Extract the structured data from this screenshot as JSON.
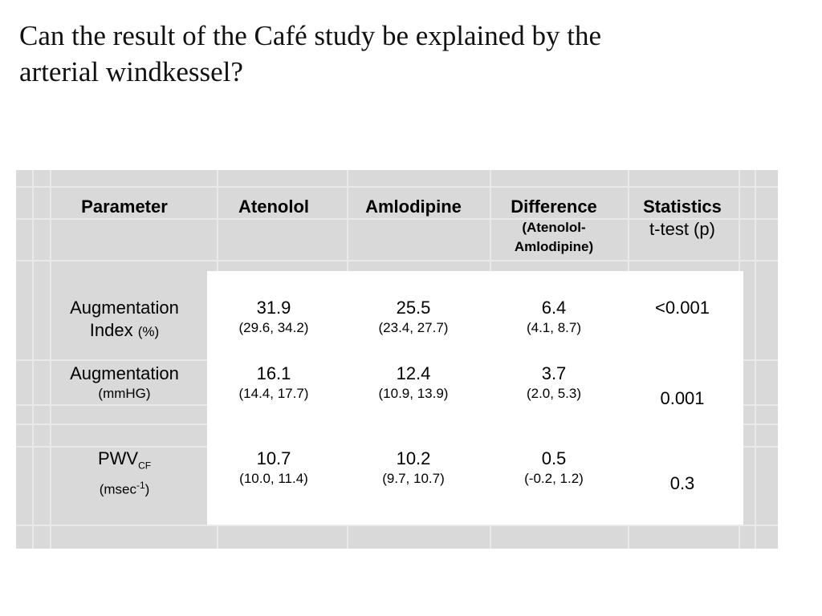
{
  "title": {
    "line1": "Can the result of the Café study be explained by the",
    "line2": "arterial windkessel?"
  },
  "table": {
    "headers": {
      "parameter": "Parameter",
      "atenolol": "Atenolol",
      "amlodipine": "Amlodipine",
      "difference": "Difference",
      "difference_sub_1": "(Atenolol-",
      "difference_sub_2": "Amlodipine)",
      "statistics": "Statistics",
      "statistics_sub": "t-test (p)"
    },
    "rows": [
      {
        "param_line1": "Augmentation",
        "param_line2": "Index",
        "param_unit": "(%)",
        "atenolol": "31.9",
        "atenolol_ci": "(29.6, 34.2)",
        "amlodipine": "25.5",
        "amlodipine_ci": "(23.4, 27.7)",
        "difference": "6.4",
        "difference_ci": "(4.1, 8.7)",
        "p": "<0.001"
      },
      {
        "param_line1": "Augmentation",
        "param_unit": "(mmHG)",
        "atenolol": "16.1",
        "atenolol_ci": "(14.4, 17.7)",
        "amlodipine": "12.4",
        "amlodipine_ci": "(10.9, 13.9)",
        "difference": "3.7",
        "difference_ci": "(2.0, 5.3)",
        "p": "0.001"
      },
      {
        "param_main": "PWV",
        "param_sub": "CF",
        "param_unit_pre": "(msec",
        "param_unit_sup": "-1",
        "param_unit_post": ")",
        "atenolol": "10.7",
        "atenolol_ci": "(10.0, 11.4)",
        "amlodipine": "10.2",
        "amlodipine_ci": "(9.7, 10.7)",
        "difference": "0.5",
        "difference_ci": "(-0.2, 1.2)",
        "p": "0.3"
      }
    ]
  }
}
